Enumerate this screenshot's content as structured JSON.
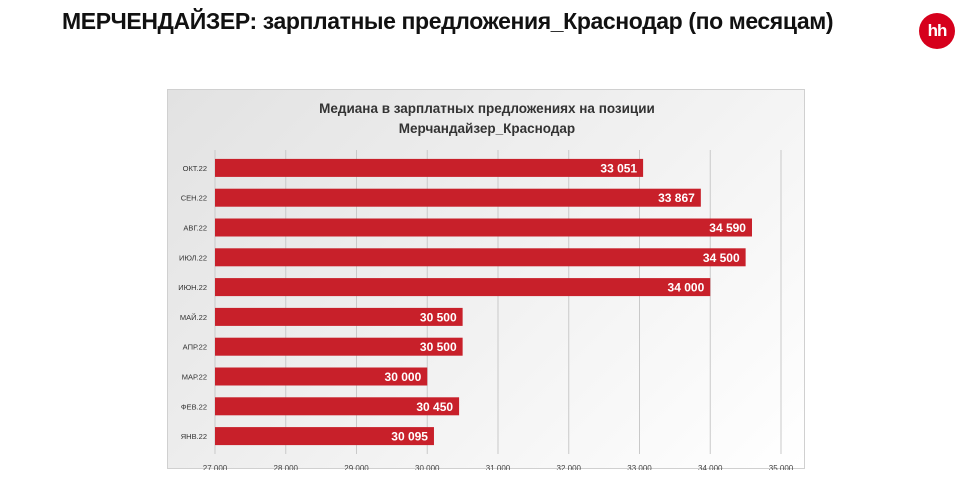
{
  "header": {
    "title": "МЕРЧЕНДАЙЗЕР: зарплатные предложения_Краснодар (по месяцам)",
    "logo_text": "hh"
  },
  "colors": {
    "bar": "#c8202a",
    "brand": "#d6001c",
    "grid": "#c9c9c9"
  },
  "chart_data": {
    "type": "bar",
    "orientation": "horizontal",
    "title_line1": "Медиана в зарплатных предложениях на позиции",
    "title_line2": "Мерчандайзер_Краснодар",
    "categories": [
      "ОКТ.22",
      "СЕН.22",
      "АВГ.22",
      "ИЮЛ.22",
      "ИЮН.22",
      "МАЙ.22",
      "АПР.22",
      "МАР.22",
      "ФЕВ.22",
      "ЯНВ.22"
    ],
    "values": [
      33051,
      33867,
      34590,
      34500,
      34000,
      30500,
      30500,
      30000,
      30450,
      30095
    ],
    "value_labels": [
      "33 051",
      "33 867",
      "34 590",
      "34 500",
      "34 000",
      "30 500",
      "30 500",
      "30 000",
      "30 450",
      "30 095"
    ],
    "xlim": [
      27000,
      35000
    ],
    "x_ticks": [
      27000,
      28000,
      29000,
      30000,
      31000,
      32000,
      33000,
      34000,
      35000
    ],
    "x_tick_labels": [
      "27 000",
      "28 000",
      "29 000",
      "30 000",
      "31 000",
      "32 000",
      "33 000",
      "34 000",
      "35 000"
    ],
    "grid": true,
    "legend": "none"
  }
}
